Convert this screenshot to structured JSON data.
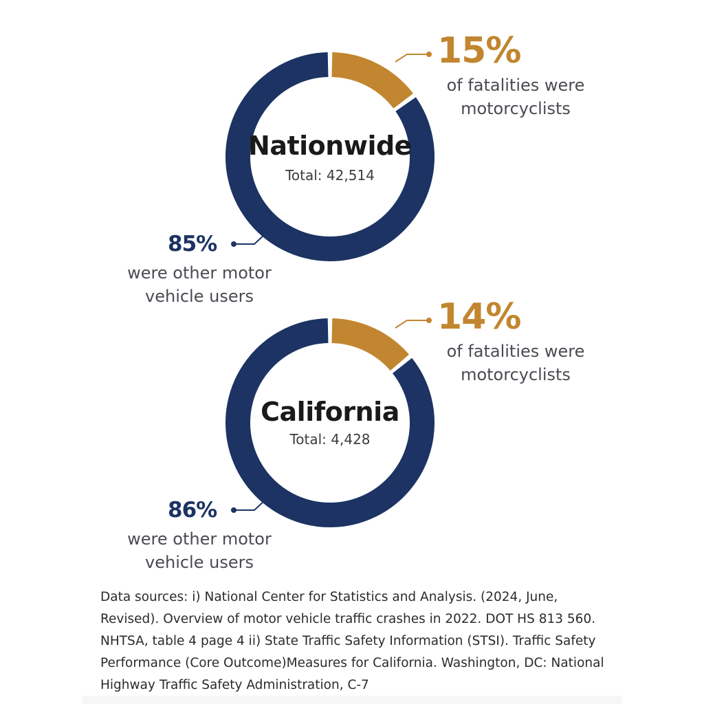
{
  "chart_data": [
    {
      "type": "donut",
      "title": "Nationwide",
      "subtitle": "Total: 42,514",
      "series": [
        {
          "name": "motorcyclists",
          "value": 15,
          "percent_label": "15%",
          "description": "of fatalities were motorcyclists",
          "color": "#c1862f"
        },
        {
          "name": "other motor vehicle users",
          "value": 85,
          "percent_label": "85%",
          "description": "were other motor vehicle users",
          "color": "#1c3363"
        }
      ]
    },
    {
      "type": "donut",
      "title": "California",
      "subtitle": "Total: 4,428",
      "series": [
        {
          "name": "motorcyclists",
          "value": 14,
          "percent_label": "14%",
          "description": "of fatalities were motorcyclists",
          "color": "#c1862f"
        },
        {
          "name": "other motor vehicle users",
          "value": 86,
          "percent_label": "86%",
          "description": "were other motor vehicle users",
          "color": "#1c3363"
        }
      ]
    }
  ],
  "charts": [
    {
      "title": "Nationwide",
      "total": "Total: 42,514",
      "moto_pct": "15%",
      "moto_note_1": "of fatalities were",
      "moto_note_2": "motorcyclists",
      "other_pct": "85%",
      "other_note_1": "were other motor",
      "other_note_2": "vehicle users"
    },
    {
      "title": "California",
      "total": "Total: 4,428",
      "moto_pct": "14%",
      "moto_note_1": "of fatalities were",
      "moto_note_2": "motorcyclists",
      "other_pct": "86%",
      "other_note_1": "were other motor",
      "other_note_2": "vehicle users"
    }
  ],
  "sources": {
    "line1": "Data sources: i) National Center for Statistics and Analysis. (2024, June,",
    "line2": "Revised). Overview of motor vehicle traffic crashes in 2022. DOT HS 813 560.",
    "line3": "NHTSA, table 4 page 4 ii) State Traffic Safety Information (STSI). Traffic Safety",
    "line4": "Performance (Core Outcome)Measures for California. Washington, DC: National",
    "line5": "Highway Traffic Safety Administration, C-7"
  },
  "colors": {
    "motorcyclist": "#c1862f",
    "other": "#1c3363",
    "connector": "#c1862f",
    "connector_other": "#1c3363"
  }
}
